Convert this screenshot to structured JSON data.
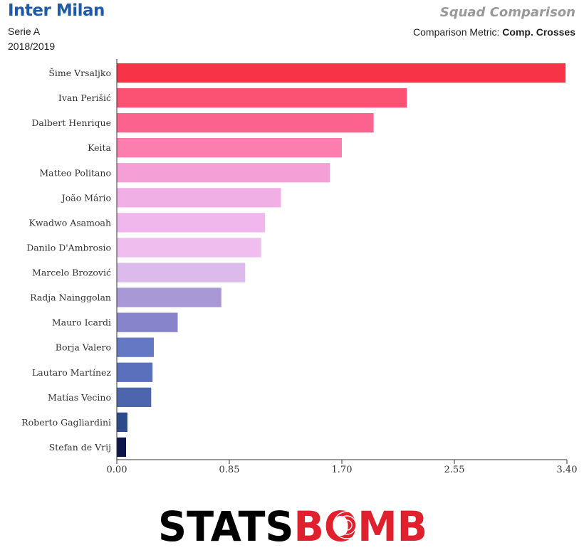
{
  "header": {
    "team": "Inter Milan",
    "league": "Serie A",
    "season": "2018/2019",
    "title": "Squad Comparison",
    "metric_prefix": "Comparison Metric: ",
    "metric_value": "Comp. Crosses"
  },
  "brand": {
    "logo_text": "STATSBOMB"
  },
  "chart_data": {
    "type": "bar",
    "orientation": "horizontal",
    "title": "Squad Comparison",
    "xlabel": "",
    "ylabel": "",
    "xlim": [
      0,
      3.4
    ],
    "xticks": [
      "0.00",
      "0.85",
      "1.70",
      "2.55",
      "3.40"
    ],
    "grid": false,
    "categories": [
      "Šime Vrsaljko",
      "Ivan Perišić",
      "Dalbert Henrique",
      "Keita",
      "Matteo Politano",
      "João Mário",
      "Kwadwo Asamoah",
      "Danilo D'Ambrosio",
      "Marcelo Brozović",
      "Radja Nainggolan",
      "Mauro Icardi",
      "Borja Valero",
      "Lautaro Martínez",
      "Matías Vecino",
      "Roberto Gagliardini",
      "Stefan de Vrij"
    ],
    "values": [
      3.39,
      2.19,
      1.94,
      1.7,
      1.61,
      1.24,
      1.12,
      1.09,
      0.97,
      0.79,
      0.46,
      0.28,
      0.27,
      0.26,
      0.08,
      0.07
    ],
    "colors": [
      "#f73447",
      "#fb5273",
      "#fc628e",
      "#fb7eaf",
      "#f4a0d6",
      "#f0b0e6",
      "#f0b7ec",
      "#efbdee",
      "#dcbaeb",
      "#a898d6",
      "#8784cb",
      "#6478c3",
      "#5b70bc",
      "#4c65ac",
      "#2e4a8a",
      "#0d1647"
    ]
  }
}
